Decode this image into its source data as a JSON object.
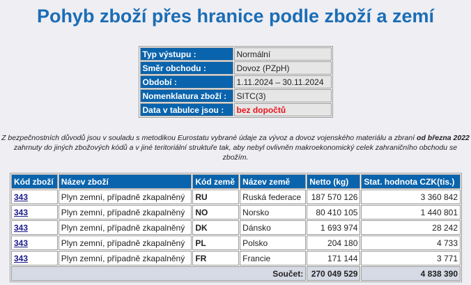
{
  "title": "Pohyb zboží přes hranice podle zboží a zemí",
  "info": [
    {
      "label": "Typ výstupu :",
      "value": "Normální"
    },
    {
      "label": "Směr obchodu :",
      "value": "Dovoz (PZpH)"
    },
    {
      "label": "Období :",
      "value": "1.11.2024  –  30.11.2024"
    },
    {
      "label": "Nomenklatura zboží :",
      "value": "SITC(3)"
    },
    {
      "label": "Data v tabulce jsou :",
      "value": "bez dopočtů"
    }
  ],
  "note": {
    "part1": "Z bezpečnostních důvodů jsou v souladu s metodikou Eurostatu vybrané údaje za vývoz a dovoz vojenského materiálu a zbraní ",
    "bold": "od března 2022",
    "part2": " zahrnuty do jiných zbožových kódů a v jiné teritoriální struktuře tak, aby nebyl ovlivněn makroekonomický celek zahraničního obchodu se zbožím."
  },
  "table": {
    "headers": [
      "Kód zboží",
      "Název zboží",
      "Kód země",
      "Název země",
      "Netto (kg)",
      "Stat. hodnota CZK(tis.)"
    ],
    "rows": [
      [
        "343",
        "Plyn zemní, případně zkapalněný",
        "RU",
        "Ruská federace",
        "187 570 126",
        "3 360 842"
      ],
      [
        "343",
        "Plyn zemní, případně zkapalněný",
        "NO",
        "Norsko",
        "80 410 105",
        "1 440 801"
      ],
      [
        "343",
        "Plyn zemní, případně zkapalněný",
        "DK",
        "Dánsko",
        "1 693 974",
        "28 242"
      ],
      [
        "343",
        "Plyn zemní, případně zkapalněný",
        "PL",
        "Polsko",
        "204 180",
        "4 733"
      ],
      [
        "343",
        "Plyn zemní, případně zkapalněný",
        "FR",
        "Francie",
        "171 144",
        "3 771"
      ]
    ],
    "sum_label": "Součet:",
    "sum_netto": "270 049 529",
    "sum_value": "4 838 390"
  },
  "colors": {
    "title": "#1b6db5",
    "header": "#0a64ad",
    "highlight": "#e8141c"
  }
}
